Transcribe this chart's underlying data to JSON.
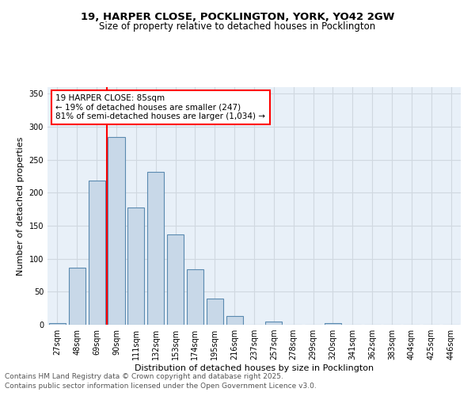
{
  "title_line1": "19, HARPER CLOSE, POCKLINGTON, YORK, YO42 2GW",
  "title_line2": "Size of property relative to detached houses in Pocklington",
  "xlabel": "Distribution of detached houses by size in Pocklington",
  "ylabel": "Number of detached properties",
  "categories": [
    "27sqm",
    "48sqm",
    "69sqm",
    "90sqm",
    "111sqm",
    "132sqm",
    "153sqm",
    "174sqm",
    "195sqm",
    "216sqm",
    "237sqm",
    "257sqm",
    "278sqm",
    "299sqm",
    "320sqm",
    "341sqm",
    "362sqm",
    "383sqm",
    "404sqm",
    "425sqm",
    "446sqm"
  ],
  "values": [
    2,
    86,
    218,
    284,
    178,
    232,
    137,
    84,
    40,
    13,
    0,
    5,
    0,
    0,
    3,
    0,
    0,
    0,
    0,
    0,
    0
  ],
  "bar_color": "#c8d8e8",
  "bar_edge_color": "#5a8ab0",
  "vline_x_index": 3,
  "vline_color": "red",
  "annotation_text": "19 HARPER CLOSE: 85sqm\n← 19% of detached houses are smaller (247)\n81% of semi-detached houses are larger (1,034) →",
  "annotation_box_color": "white",
  "annotation_box_edge_color": "red",
  "ylim": [
    0,
    360
  ],
  "yticks": [
    0,
    50,
    100,
    150,
    200,
    250,
    300,
    350
  ],
  "grid_color": "#d0d8e0",
  "background_color": "#e8f0f8",
  "footer_line1": "Contains HM Land Registry data © Crown copyright and database right 2025.",
  "footer_line2": "Contains public sector information licensed under the Open Government Licence v3.0.",
  "title_fontsize": 9.5,
  "subtitle_fontsize": 8.5,
  "axis_label_fontsize": 8,
  "tick_fontsize": 7,
  "annotation_fontsize": 7.5,
  "footer_fontsize": 6.5
}
